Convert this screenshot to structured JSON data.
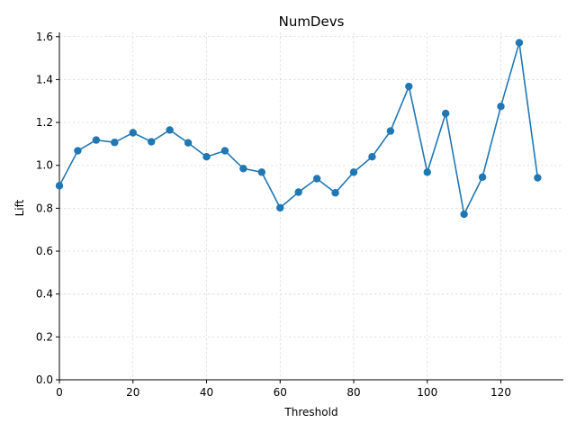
{
  "chart_data": {
    "type": "line",
    "title": "NumDevs",
    "xlabel": "Threshold",
    "ylabel": "Lift",
    "xlim": [
      0,
      137
    ],
    "ylim": [
      0,
      1.62
    ],
    "xticks": [
      0,
      20,
      40,
      60,
      80,
      100,
      120
    ],
    "yticks": [
      0.0,
      0.2,
      0.4,
      0.6,
      0.8,
      1.0,
      1.2,
      1.4,
      1.6
    ],
    "grid": true,
    "color": "#1f77b4",
    "series": [
      {
        "name": "NumDevs",
        "x": [
          0,
          5,
          10,
          15,
          20,
          25,
          30,
          35,
          40,
          45,
          50,
          55,
          60,
          65,
          70,
          75,
          80,
          85,
          90,
          95,
          100,
          105,
          110,
          115,
          120,
          125,
          130
        ],
        "values": [
          0.905,
          1.068,
          1.118,
          1.107,
          1.152,
          1.11,
          1.165,
          1.105,
          1.04,
          1.068,
          0.985,
          0.968,
          0.802,
          0.875,
          0.938,
          0.872,
          0.968,
          1.04,
          1.16,
          1.368,
          0.968,
          1.242,
          0.772,
          0.945,
          1.275,
          1.572,
          0.942
        ]
      }
    ]
  }
}
